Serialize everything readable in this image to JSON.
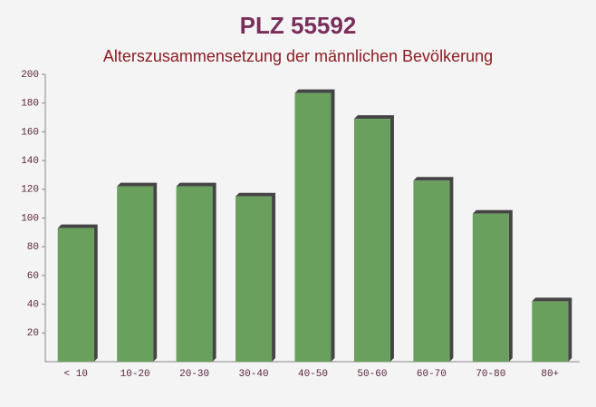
{
  "chart_data": {
    "type": "bar",
    "title": "PLZ 55592",
    "subtitle": "Alterszusammensetzung der männlichen Bevölkerung",
    "categories": [
      "< 10",
      "10-20",
      "20-30",
      "30-40",
      "40-50",
      "50-60",
      "60-70",
      "70-80",
      "80+"
    ],
    "values": [
      93,
      122,
      122,
      115,
      187,
      169,
      126,
      103,
      42
    ],
    "color": "#6aa05e",
    "ylim": [
      0,
      200
    ],
    "yticks": [
      20,
      40,
      60,
      80,
      100,
      120,
      140,
      160,
      180,
      200
    ]
  }
}
